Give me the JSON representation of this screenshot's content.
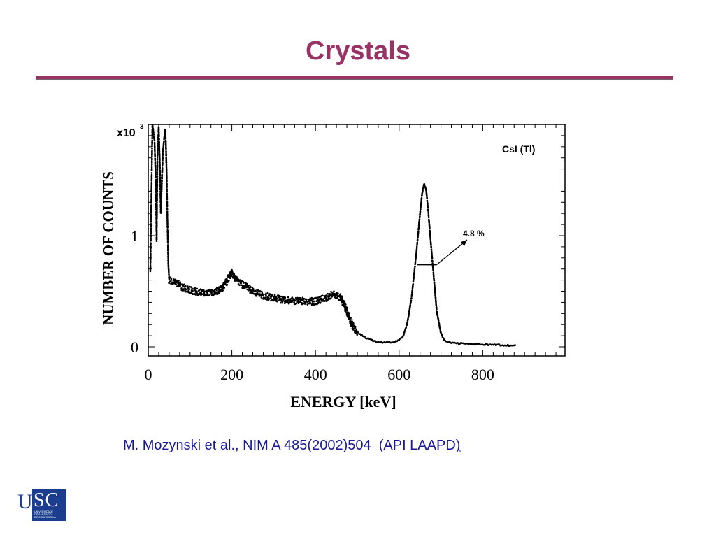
{
  "slide": {
    "title": "Crystals",
    "citation_main": "M. Mozynski et al., NIM A 485(2002)504  (API LAAPD",
    "citation_end": ")",
    "logo": {
      "letter_u": "U",
      "letters_sc": "SC",
      "line1": "UNIVERSIDADE",
      "line2": "DE SANTIAGO",
      "line3": "DE COMPOSTELA"
    },
    "colors": {
      "title": "#993366",
      "citation": "#1a1a99",
      "logo": "#1a3d8f"
    }
  },
  "chart_data": {
    "type": "scatter",
    "xlabel": "ENERGY [keV]",
    "ylabel": "NUMBER OF COUNTS",
    "y_multiplier": "x10",
    "y_multiplier_exp": "3",
    "xlim": [
      0,
      1000
    ],
    "ylim": [
      0,
      2
    ],
    "x_ticks": [
      0,
      200,
      400,
      600,
      800
    ],
    "y_ticks": [
      0,
      1
    ],
    "legend": "CsI (Tl)",
    "annotation": {
      "text": "4.8 %",
      "x": 650,
      "y": 0.74
    },
    "series": [
      {
        "points": [
          [
            5,
            0.68
          ],
          [
            10,
            2.0
          ],
          [
            15,
            1.85
          ],
          [
            18,
            1.5
          ],
          [
            20,
            0.95
          ],
          [
            22,
            1.7
          ],
          [
            25,
            1.98
          ],
          [
            28,
            1.6
          ],
          [
            30,
            1.2
          ],
          [
            35,
            1.75
          ],
          [
            40,
            1.95
          ],
          [
            42,
            1.85
          ],
          [
            44,
            1.55
          ],
          [
            46,
            1.1
          ],
          [
            48,
            0.75
          ],
          [
            50,
            0.6
          ],
          [
            60,
            0.59
          ],
          [
            70,
            0.57
          ],
          [
            80,
            0.54
          ],
          [
            100,
            0.51
          ],
          [
            120,
            0.49
          ],
          [
            140,
            0.48
          ],
          [
            160,
            0.49
          ],
          [
            175,
            0.52
          ],
          [
            185,
            0.57
          ],
          [
            195,
            0.64
          ],
          [
            200,
            0.66
          ],
          [
            210,
            0.61
          ],
          [
            225,
            0.56
          ],
          [
            250,
            0.5
          ],
          [
            275,
            0.46
          ],
          [
            300,
            0.44
          ],
          [
            325,
            0.42
          ],
          [
            350,
            0.41
          ],
          [
            375,
            0.41
          ],
          [
            400,
            0.41
          ],
          [
            425,
            0.44
          ],
          [
            440,
            0.47
          ],
          [
            450,
            0.47
          ],
          [
            460,
            0.44
          ],
          [
            470,
            0.37
          ],
          [
            480,
            0.27
          ],
          [
            490,
            0.18
          ],
          [
            500,
            0.13
          ],
          [
            520,
            0.08
          ],
          [
            540,
            0.05
          ],
          [
            560,
            0.04
          ],
          [
            580,
            0.04
          ],
          [
            600,
            0.06
          ],
          [
            610,
            0.1
          ],
          [
            620,
            0.22
          ],
          [
            630,
            0.45
          ],
          [
            640,
            0.8
          ],
          [
            650,
            1.2
          ],
          [
            655,
            1.38
          ],
          [
            660,
            1.47
          ],
          [
            665,
            1.4
          ],
          [
            670,
            1.2
          ],
          [
            680,
            0.75
          ],
          [
            690,
            0.32
          ],
          [
            700,
            0.12
          ],
          [
            710,
            0.05
          ],
          [
            720,
            0.04
          ],
          [
            750,
            0.03
          ],
          [
            800,
            0.02
          ],
          [
            850,
            0.015
          ],
          [
            880,
            0.01
          ]
        ]
      }
    ]
  }
}
